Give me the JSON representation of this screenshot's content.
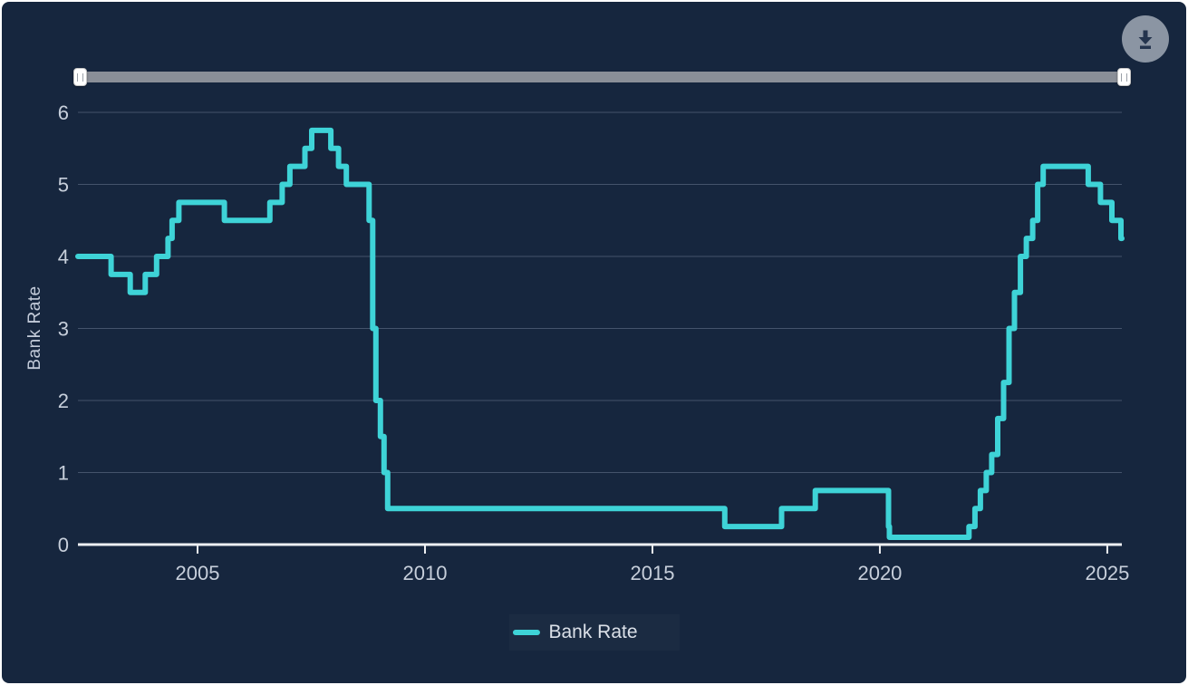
{
  "panel": {
    "background": "#16263E",
    "border_color": "#FFFFFF"
  },
  "toolbar": {
    "download_button": {
      "icon": "download-icon",
      "circle_color": "#8B95A3",
      "icon_color": "#24344E"
    }
  },
  "range_slider": {
    "track_color": "#8A8F98",
    "handle_color": "#FFFFFF",
    "left_handle_grip": "download range start",
    "right_handle_grip": "download range end",
    "selected_range": "full"
  },
  "chart_data": {
    "type": "line",
    "step": true,
    "title": "",
    "xlabel": "",
    "ylabel": "Bank Rate",
    "xlim": [
      2002.37,
      2025.32
    ],
    "ylim": [
      0,
      6
    ],
    "grid": "horizontal",
    "x_ticks": [
      {
        "value": 2005,
        "label": "2005"
      },
      {
        "value": 2010,
        "label": "2010"
      },
      {
        "value": 2015,
        "label": "2015"
      },
      {
        "value": 2020,
        "label": "2020"
      },
      {
        "value": 2025,
        "label": "2025"
      }
    ],
    "y_ticks": [
      {
        "value": 0,
        "label": "0"
      },
      {
        "value": 1,
        "label": "1"
      },
      {
        "value": 2,
        "label": "2"
      },
      {
        "value": 3,
        "label": "3"
      },
      {
        "value": 4,
        "label": "4"
      },
      {
        "value": 5,
        "label": "5"
      },
      {
        "value": 6,
        "label": "6"
      }
    ],
    "legend": {
      "position": "bottom",
      "label": "Bank Rate",
      "swatch_color": "#3ED3D7"
    },
    "series": [
      {
        "name": "Bank Rate",
        "color": "#3ED3D7",
        "stroke_width": 6,
        "points": [
          [
            2002.37,
            4.0
          ],
          [
            2003.1,
            3.75
          ],
          [
            2003.52,
            3.5
          ],
          [
            2003.85,
            3.75
          ],
          [
            2004.1,
            4.0
          ],
          [
            2004.35,
            4.25
          ],
          [
            2004.44,
            4.5
          ],
          [
            2004.59,
            4.75
          ],
          [
            2005.59,
            4.5
          ],
          [
            2006.59,
            4.75
          ],
          [
            2006.86,
            5.0
          ],
          [
            2007.03,
            5.25
          ],
          [
            2007.36,
            5.5
          ],
          [
            2007.51,
            5.75
          ],
          [
            2007.93,
            5.5
          ],
          [
            2008.1,
            5.25
          ],
          [
            2008.27,
            5.0
          ],
          [
            2008.77,
            4.5
          ],
          [
            2008.85,
            3.0
          ],
          [
            2008.92,
            2.0
          ],
          [
            2009.02,
            1.5
          ],
          [
            2009.1,
            1.0
          ],
          [
            2009.18,
            0.5
          ],
          [
            2016.59,
            0.25
          ],
          [
            2017.84,
            0.5
          ],
          [
            2018.58,
            0.75
          ],
          [
            2020.19,
            0.25
          ],
          [
            2020.21,
            0.1
          ],
          [
            2021.96,
            0.25
          ],
          [
            2022.09,
            0.5
          ],
          [
            2022.21,
            0.75
          ],
          [
            2022.34,
            1.0
          ],
          [
            2022.46,
            1.25
          ],
          [
            2022.59,
            1.75
          ],
          [
            2022.72,
            2.25
          ],
          [
            2022.84,
            3.0
          ],
          [
            2022.96,
            3.5
          ],
          [
            2023.09,
            4.0
          ],
          [
            2023.22,
            4.25
          ],
          [
            2023.36,
            4.5
          ],
          [
            2023.47,
            5.0
          ],
          [
            2023.59,
            5.25
          ],
          [
            2024.58,
            5.0
          ],
          [
            2024.85,
            4.75
          ],
          [
            2025.1,
            4.5
          ],
          [
            2025.3,
            4.25
          ]
        ]
      }
    ],
    "style": {
      "gridline_color": "#44536B",
      "axis_color": "#EDEFF2",
      "tick_label_color": "#C7CFDB",
      "tick_label_size": 22
    }
  }
}
